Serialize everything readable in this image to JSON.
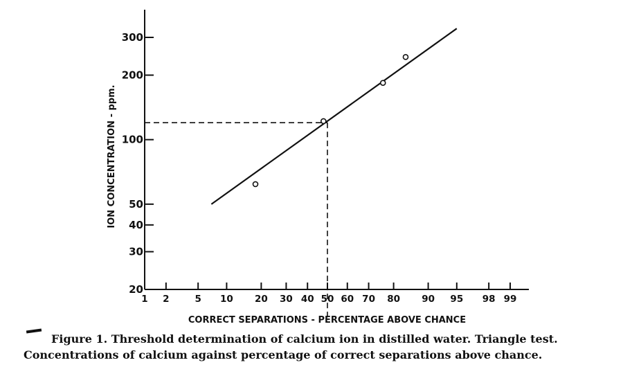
{
  "chart_data": {
    "type": "scatter",
    "title": "",
    "xlabel": "CORRECT SEPARATIONS - PERCENTAGE ABOVE CHANCE",
    "ylabel": "ION CONCENTRATION - ppm.",
    "x_scale": "probability",
    "y_scale": "log",
    "xlim": [
      1,
      99.9
    ],
    "ylim": [
      20,
      400
    ],
    "x_ticks": [
      1,
      2,
      5,
      10,
      20,
      30,
      40,
      50,
      60,
      70,
      80,
      90,
      95,
      98,
      99
    ],
    "x_tick_labels": [
      "1",
      "2",
      "5",
      "10",
      "20",
      "30",
      "40",
      "50",
      "60",
      "70",
      "80",
      "90",
      "95",
      "98",
      "99"
    ],
    "y_ticks": [
      20,
      30,
      40,
      50,
      100,
      200,
      300
    ],
    "y_tick_labels": [
      "20",
      "30",
      "40",
      "50",
      "100",
      "200",
      "300"
    ],
    "series": [
      {
        "points": [
          {
            "x": 18,
            "y": 62
          },
          {
            "x": 48,
            "y": 122
          },
          {
            "x": 76,
            "y": 184
          },
          {
            "x": 84,
            "y": 243
          }
        ]
      }
    ],
    "fit_line": {
      "x": [
        7,
        95
      ],
      "y": [
        50,
        330
      ]
    },
    "threshold": {
      "x": 50,
      "y": 120
    },
    "grid": false,
    "legend": "none"
  },
  "caption": {
    "line1": "Figure 1. Threshold determination of calcium ion in distilled water. Triangle test.",
    "line2": "Concentrations of calcium against percentage of correct separations above chance."
  }
}
